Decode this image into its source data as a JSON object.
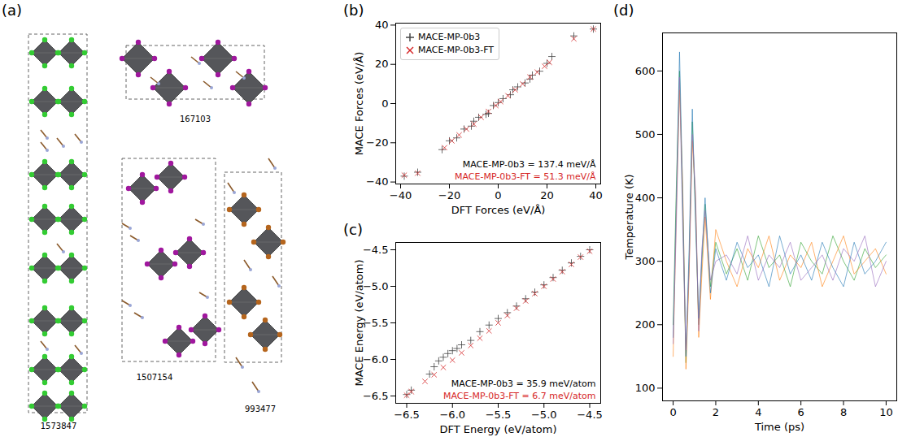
{
  "panel_a": {
    "title": "(a)",
    "structures": [
      "1573847",
      "167103",
      "1507154",
      "993477"
    ]
  },
  "chart_data": [
    {
      "type": "scatter",
      "title": "(b)",
      "xlabel": "DFT Forces (eV/Å)",
      "ylabel": "MACE Forces (eV/Å)",
      "xlim": [
        -42,
        42
      ],
      "ylim": [
        -41,
        41
      ],
      "xticks": [
        {
          "value": -40,
          "label": "−40"
        },
        {
          "value": -20,
          "label": "−20"
        },
        0,
        20,
        40
      ],
      "yticks": [
        {
          "value": -40,
          "label": "−40"
        },
        {
          "value": -20,
          "label": "−20"
        },
        0,
        20,
        40
      ],
      "grid": false,
      "legend": "upper left",
      "series": [
        {
          "name": "MACE-MP-0b3",
          "color": "#444444",
          "marker": "plus",
          "x": [
            -38.5,
            -33,
            -23,
            -20,
            -17,
            -14,
            -11,
            -8,
            -5,
            -2,
            0,
            2,
            5,
            8,
            11,
            14,
            17,
            20,
            22,
            31,
            39,
            -10,
            6,
            -4,
            13
          ],
          "values": [
            -37,
            -35,
            -23.5,
            -19,
            -17.5,
            -13,
            -11.5,
            -7,
            -5.5,
            -1,
            0.5,
            2.5,
            4.5,
            8.5,
            10.5,
            14.5,
            16.5,
            20.5,
            24,
            34.5,
            38,
            -9,
            7,
            -5,
            12.5
          ]
        },
        {
          "name": "MACE-MP-0b3-FT",
          "color": "#d62728",
          "marker": "times",
          "x": [
            -38.5,
            -33,
            -22,
            -19,
            -16,
            -13,
            -10,
            -7,
            -4,
            -1,
            1,
            4,
            7,
            10,
            13,
            16,
            19,
            21,
            31,
            39
          ],
          "values": [
            -36.5,
            -35.5,
            -22.5,
            -19,
            -16,
            -13,
            -10.5,
            -7,
            -4,
            -1,
            1,
            4,
            7,
            10,
            13.5,
            16,
            19,
            21,
            33,
            38
          ]
        }
      ],
      "annotations": [
        {
          "text": "MACE-MP-0b3 = 137.4 meV/Å",
          "color": "#000000"
        },
        {
          "text": "MACE-MP-0b3-FT = 51.3 meV/Å",
          "color": "#d62728"
        }
      ]
    },
    {
      "type": "scatter",
      "title": "(c)",
      "xlabel": "DFT Energy (eV/atom)",
      "ylabel": "MACE Energy (eV/atom)",
      "xlim": [
        -6.62,
        -4.38
      ],
      "ylim": [
        -6.6,
        -4.4
      ],
      "xticks": [
        {
          "value": -6.5,
          "label": "−6.5"
        },
        {
          "value": -6,
          "label": "−6.0"
        },
        {
          "value": -5.5,
          "label": "−5.5"
        },
        {
          "value": -5,
          "label": "−5.0"
        },
        {
          "value": -4.5,
          "label": "−4.5"
        }
      ],
      "yticks": [
        {
          "value": -6.5,
          "label": "−6.5"
        },
        {
          "value": -6,
          "label": "−6.0"
        },
        {
          "value": -5.5,
          "label": "−5.5"
        },
        {
          "value": -5,
          "label": "−5.0"
        },
        {
          "value": -4.5,
          "label": "−4.5"
        }
      ],
      "grid": false,
      "series": [
        {
          "color": "#444444",
          "marker": "plus",
          "x": [
            -6.5,
            -6.45,
            -6.25,
            -6.2,
            -6.15,
            -6.1,
            -6.05,
            -6.0,
            -5.95,
            -5.9,
            -5.8,
            -5.7,
            -5.6,
            -5.5,
            -5.4,
            -5.3,
            -5.2,
            -5.1,
            -5.0,
            -4.9,
            -4.8,
            -4.7,
            -4.6,
            -4.5
          ],
          "values": [
            -6.48,
            -6.42,
            -6.2,
            -6.1,
            -6.02,
            -5.97,
            -5.92,
            -5.88,
            -5.85,
            -5.8,
            -5.74,
            -5.62,
            -5.53,
            -5.44,
            -5.36,
            -5.27,
            -5.17,
            -5.08,
            -4.98,
            -4.88,
            -4.78,
            -4.68,
            -4.59,
            -4.5
          ]
        },
        {
          "color": "#d62728",
          "marker": "times",
          "x": [
            -6.5,
            -6.45,
            -6.3,
            -6.2,
            -6.1,
            -6.0,
            -5.9,
            -5.8,
            -5.7,
            -5.6,
            -5.5,
            -5.4,
            -5.3,
            -5.2,
            -5.1,
            -5.0,
            -4.9,
            -4.8,
            -4.7,
            -4.6,
            -4.5
          ],
          "values": [
            -6.49,
            -6.44,
            -6.3,
            -6.21,
            -6.11,
            -6.01,
            -5.91,
            -5.81,
            -5.71,
            -5.61,
            -5.5,
            -5.4,
            -5.3,
            -5.2,
            -5.1,
            -5.0,
            -4.9,
            -4.8,
            -4.7,
            -4.6,
            -4.52
          ]
        }
      ],
      "annotations": [
        {
          "text": "MACE-MP-0b3 = 35.9 meV/atom",
          "color": "#000000"
        },
        {
          "text": "MACE-MP-0b3-FT = 6.7 meV/atom",
          "color": "#d62728"
        }
      ]
    },
    {
      "type": "line",
      "title": "(d)",
      "xlabel": "Time (ps)",
      "ylabel": "Temperature (K)",
      "xlim": [
        -0.5,
        10.5
      ],
      "ylim": [
        80,
        660
      ],
      "xticks": [
        0,
        2,
        4,
        6,
        8,
        10
      ],
      "yticks": [
        100,
        200,
        300,
        400,
        500,
        600
      ],
      "grid": false,
      "x": [
        0,
        0.15,
        0.3,
        0.45,
        0.6,
        0.75,
        0.9,
        1.05,
        1.2,
        1.35,
        1.5,
        1.75,
        2,
        2.5,
        3,
        3.5,
        4,
        4.5,
        5,
        5.5,
        6,
        6.5,
        7,
        7.5,
        8,
        8.5,
        9,
        9.5,
        10
      ],
      "series": [
        {
          "color": "#2ca02c",
          "values": [
            200,
            420,
            600,
            380,
            140,
            300,
            520,
            380,
            200,
            300,
            390,
            260,
            330,
            280,
            320,
            270,
            340,
            290,
            310,
            260,
            330,
            300,
            280,
            340,
            300,
            270,
            320,
            290,
            310
          ]
        },
        {
          "color": "#ff7f0e",
          "values": [
            150,
            380,
            570,
            420,
            130,
            280,
            490,
            400,
            180,
            280,
            370,
            240,
            350,
            300,
            260,
            320,
            290,
            340,
            270,
            310,
            290,
            330,
            260,
            300,
            340,
            280,
            300,
            320,
            280
          ]
        },
        {
          "color": "#1f77b4",
          "values": [
            180,
            400,
            630,
            400,
            150,
            320,
            540,
            360,
            210,
            310,
            400,
            250,
            320,
            270,
            330,
            290,
            310,
            260,
            340,
            280,
            310,
            270,
            330,
            290,
            260,
            330,
            280,
            300,
            330
          ]
        },
        {
          "color": "#9467bd",
          "values": [
            170,
            360,
            590,
            350,
            160,
            290,
            500,
            410,
            190,
            320,
            380,
            270,
            300,
            310,
            280,
            340,
            270,
            310,
            290,
            330,
            270,
            290,
            310,
            270,
            320,
            300,
            340,
            260,
            300
          ]
        }
      ]
    }
  ]
}
